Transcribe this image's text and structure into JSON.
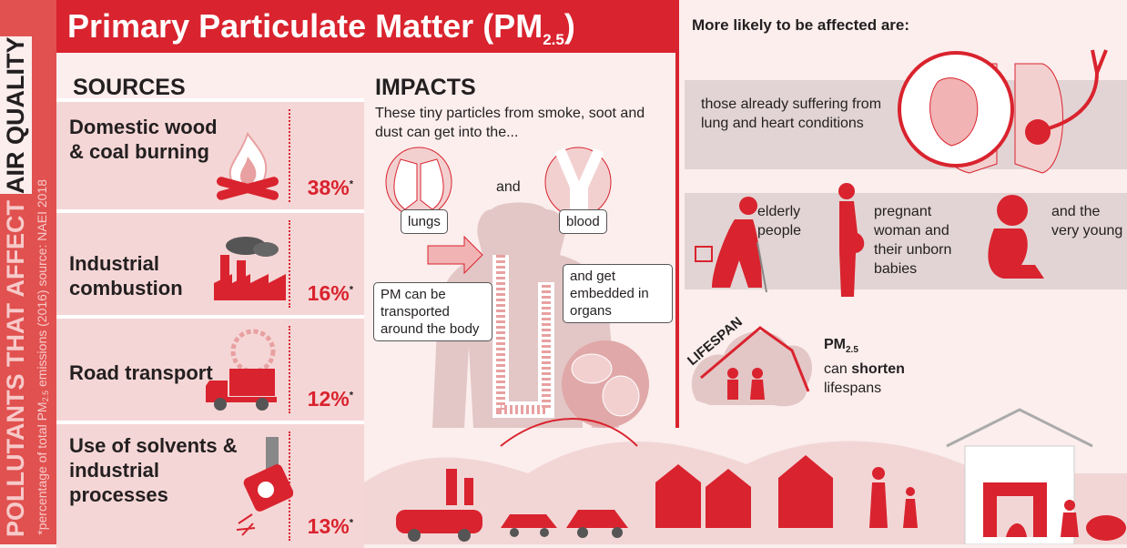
{
  "side": {
    "title": "POLLUTANTS THAT AFFECT",
    "highlight": "AIR QUALITY",
    "footnote": [
      "*percentage of total PM",
      "2.5",
      " emissions (2016) source: NAEI 2018"
    ]
  },
  "header": {
    "title": [
      "Primary Particulate Matter (PM",
      "2.5",
      ")"
    ]
  },
  "sources": {
    "heading": "SOURCES",
    "items": [
      {
        "label": "Domestic wood & coal burning",
        "percent": "38%",
        "note": "*"
      },
      {
        "label": "Industrial combustion",
        "percent": "16%",
        "note": "*"
      },
      {
        "label": "Road transport",
        "percent": "12%",
        "note": "*"
      },
      {
        "label": "Use of solvents & industrial processes",
        "percent": "13%",
        "note": "*"
      }
    ]
  },
  "impacts": {
    "heading": "IMPACTS",
    "intro": "These tiny particles from smoke, soot and dust can get into the...",
    "lungs": "lungs",
    "and": "and",
    "blood": "blood",
    "transport": "PM can be transported around the body",
    "organs": "and get embedded in organs"
  },
  "affected": {
    "heading": "More likely to be affected are:",
    "groups": [
      "those already suffering from lung and heart conditions",
      "elderly people",
      "pregnant woman and their unborn babies",
      "and the very young"
    ]
  },
  "lifespan": {
    "label": "LIFESPAN",
    "text": [
      "PM",
      "2.5",
      "can ",
      "shorten",
      "lifespans"
    ]
  }
}
